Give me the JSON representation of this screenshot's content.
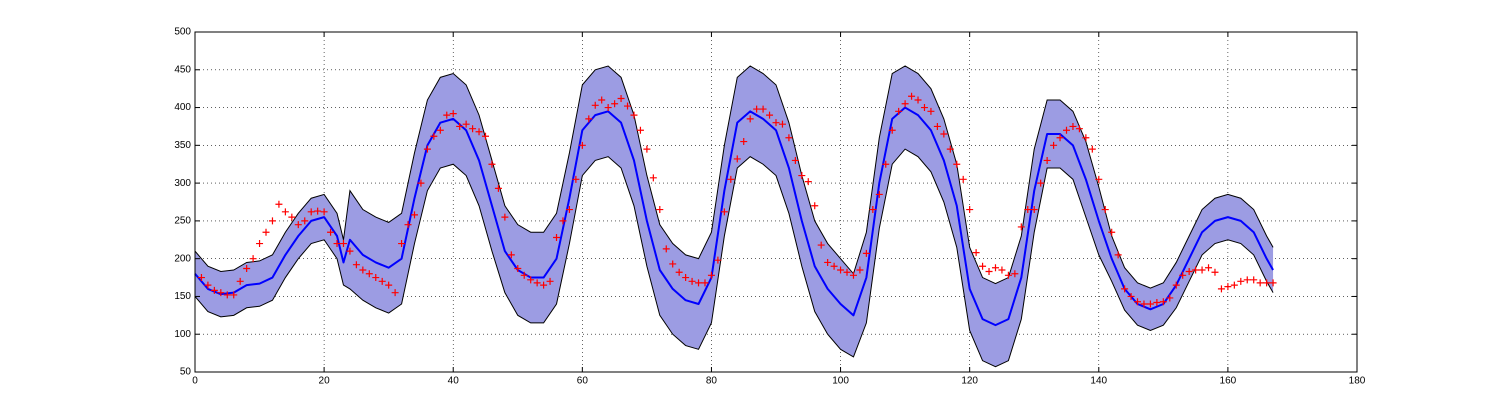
{
  "chart_data": {
    "type": "line",
    "xlim": [
      0,
      180
    ],
    "xticks": [
      0,
      20,
      40,
      60,
      80,
      100,
      120,
      140,
      160,
      180
    ],
    "ylim": [
      50,
      500
    ],
    "yticks": [
      50,
      100,
      150,
      200,
      250,
      300,
      350,
      400,
      450,
      500
    ],
    "grid": true,
    "series": [
      {
        "type": "band",
        "color": "#9c9ce3",
        "edge_color": "#000000",
        "x": [
          0,
          2,
          4,
          6,
          8,
          10,
          12,
          14,
          16,
          18,
          20,
          22,
          23,
          24,
          26,
          28,
          30,
          32,
          34,
          36,
          38,
          40,
          42,
          44,
          46,
          48,
          50,
          52,
          54,
          56,
          58,
          60,
          62,
          64,
          66,
          68,
          70,
          72,
          74,
          76,
          78,
          80,
          82,
          84,
          86,
          88,
          90,
          92,
          94,
          96,
          98,
          100,
          102,
          104,
          106,
          108,
          110,
          112,
          114,
          116,
          118,
          120,
          122,
          124,
          126,
          128,
          130,
          132,
          134,
          136,
          138,
          140,
          142,
          144,
          146,
          148,
          150,
          152,
          154,
          156,
          158,
          160,
          162,
          164,
          166,
          167
        ],
        "upper": [
          210,
          190,
          183,
          185,
          195,
          197,
          205,
          235,
          260,
          280,
          285,
          260,
          225,
          290,
          265,
          255,
          248,
          260,
          340,
          410,
          440,
          445,
          430,
          390,
          330,
          270,
          245,
          235,
          235,
          260,
          340,
          430,
          450,
          455,
          440,
          390,
          310,
          245,
          220,
          205,
          200,
          235,
          350,
          440,
          455,
          445,
          430,
          380,
          310,
          250,
          220,
          200,
          180,
          235,
          360,
          445,
          455,
          445,
          425,
          385,
          325,
          215,
          175,
          167,
          175,
          230,
          345,
          410,
          410,
          395,
          355,
          295,
          230,
          188,
          168,
          161,
          168,
          195,
          230,
          265,
          280,
          285,
          280,
          265,
          230,
          215
        ],
        "lower": [
          150,
          130,
          123,
          125,
          135,
          137,
          145,
          175,
          200,
          220,
          225,
          200,
          165,
          160,
          145,
          135,
          128,
          140,
          220,
          290,
          320,
          325,
          310,
          270,
          210,
          155,
          125,
          115,
          115,
          140,
          220,
          310,
          330,
          335,
          320,
          270,
          190,
          125,
          100,
          85,
          80,
          115,
          230,
          320,
          335,
          325,
          310,
          260,
          190,
          130,
          100,
          80,
          70,
          115,
          240,
          325,
          345,
          335,
          315,
          275,
          215,
          105,
          65,
          57,
          65,
          120,
          235,
          320,
          320,
          305,
          255,
          205,
          170,
          132,
          112,
          105,
          112,
          135,
          170,
          205,
          220,
          225,
          220,
          205,
          170,
          155
        ]
      },
      {
        "type": "line",
        "color": "#0000ff",
        "x": [
          0,
          2,
          4,
          6,
          8,
          10,
          12,
          14,
          16,
          18,
          20,
          22,
          23,
          24,
          26,
          28,
          30,
          32,
          34,
          36,
          38,
          40,
          42,
          44,
          46,
          48,
          50,
          52,
          54,
          56,
          58,
          60,
          62,
          64,
          66,
          68,
          70,
          72,
          74,
          76,
          78,
          80,
          82,
          84,
          86,
          88,
          90,
          92,
          94,
          96,
          98,
          100,
          102,
          104,
          106,
          108,
          110,
          112,
          114,
          116,
          118,
          120,
          122,
          124,
          126,
          128,
          130,
          132,
          134,
          136,
          138,
          140,
          142,
          144,
          146,
          148,
          150,
          152,
          154,
          156,
          158,
          160,
          162,
          164,
          166,
          167
        ],
        "values": [
          180,
          160,
          153,
          155,
          165,
          167,
          175,
          205,
          230,
          250,
          255,
          230,
          195,
          225,
          205,
          195,
          188,
          200,
          280,
          350,
          380,
          385,
          370,
          330,
          270,
          210,
          185,
          175,
          175,
          200,
          280,
          370,
          390,
          395,
          380,
          330,
          250,
          185,
          160,
          145,
          140,
          175,
          290,
          380,
          395,
          385,
          370,
          320,
          250,
          190,
          160,
          140,
          125,
          175,
          300,
          385,
          400,
          390,
          370,
          330,
          270,
          160,
          120,
          112,
          120,
          175,
          290,
          365,
          365,
          350,
          305,
          250,
          200,
          160,
          140,
          133,
          140,
          165,
          200,
          235,
          250,
          255,
          250,
          235,
          200,
          185
        ]
      },
      {
        "type": "scatter",
        "color": "#ff0000",
        "marker": "+",
        "x": [
          1,
          2,
          3,
          4,
          5,
          6,
          7,
          8,
          9,
          10,
          11,
          12,
          13,
          14,
          15,
          16,
          17,
          18,
          19,
          20,
          21,
          22,
          23,
          24,
          25,
          26,
          27,
          28,
          29,
          30,
          31,
          32,
          33,
          34,
          35,
          36,
          37,
          38,
          39,
          40,
          41,
          42,
          43,
          44,
          45,
          46,
          47,
          48,
          49,
          50,
          51,
          52,
          53,
          54,
          55,
          56,
          57,
          58,
          59,
          60,
          61,
          62,
          63,
          64,
          65,
          66,
          67,
          68,
          69,
          70,
          71,
          72,
          73,
          74,
          75,
          76,
          77,
          78,
          79,
          80,
          81,
          82,
          83,
          84,
          85,
          86,
          87,
          88,
          89,
          90,
          91,
          92,
          93,
          94,
          95,
          96,
          97,
          98,
          99,
          100,
          101,
          102,
          103,
          104,
          105,
          106,
          107,
          108,
          109,
          110,
          111,
          112,
          113,
          114,
          115,
          116,
          117,
          118,
          119,
          120,
          121,
          122,
          123,
          124,
          125,
          126,
          127,
          128,
          129,
          130,
          131,
          132,
          133,
          134,
          135,
          136,
          137,
          138,
          139,
          140,
          141,
          142,
          143,
          144,
          145,
          146,
          147,
          148,
          149,
          150,
          151,
          152,
          153,
          154,
          155,
          156,
          157,
          158,
          159,
          160,
          161,
          162,
          163,
          164,
          165,
          166,
          167
        ],
        "values": [
          175,
          165,
          158,
          155,
          152,
          152,
          170,
          187,
          200,
          220,
          235,
          250,
          272,
          262,
          255,
          245,
          250,
          262,
          263,
          262,
          235,
          220,
          220,
          210,
          192,
          185,
          180,
          175,
          170,
          165,
          155,
          220,
          245,
          258,
          300,
          345,
          362,
          370,
          390,
          392,
          375,
          378,
          372,
          368,
          362,
          325,
          293,
          255,
          205,
          187,
          178,
          172,
          168,
          165,
          170,
          228,
          250,
          265,
          305,
          350,
          385,
          403,
          410,
          400,
          405,
          412,
          402,
          390,
          370,
          345,
          307,
          265,
          213,
          193,
          182,
          175,
          170,
          168,
          168,
          178,
          198,
          262,
          305,
          332,
          355,
          385,
          398,
          398,
          390,
          380,
          378,
          360,
          330,
          310,
          302,
          270,
          218,
          195,
          190,
          185,
          182,
          178,
          185,
          207,
          265,
          285,
          325,
          370,
          395,
          405,
          415,
          410,
          400,
          395,
          375,
          365,
          345,
          325,
          305,
          265,
          208,
          190,
          183,
          188,
          185,
          178,
          180,
          242,
          265,
          265,
          300,
          330,
          350,
          360,
          370,
          375,
          372,
          360,
          345,
          305,
          265,
          235,
          205,
          160,
          150,
          143,
          140,
          140,
          142,
          143,
          148,
          165,
          178,
          183,
          185,
          185,
          188,
          182,
          160,
          163,
          165,
          170,
          172,
          172,
          168,
          168,
          168
        ]
      }
    ]
  }
}
